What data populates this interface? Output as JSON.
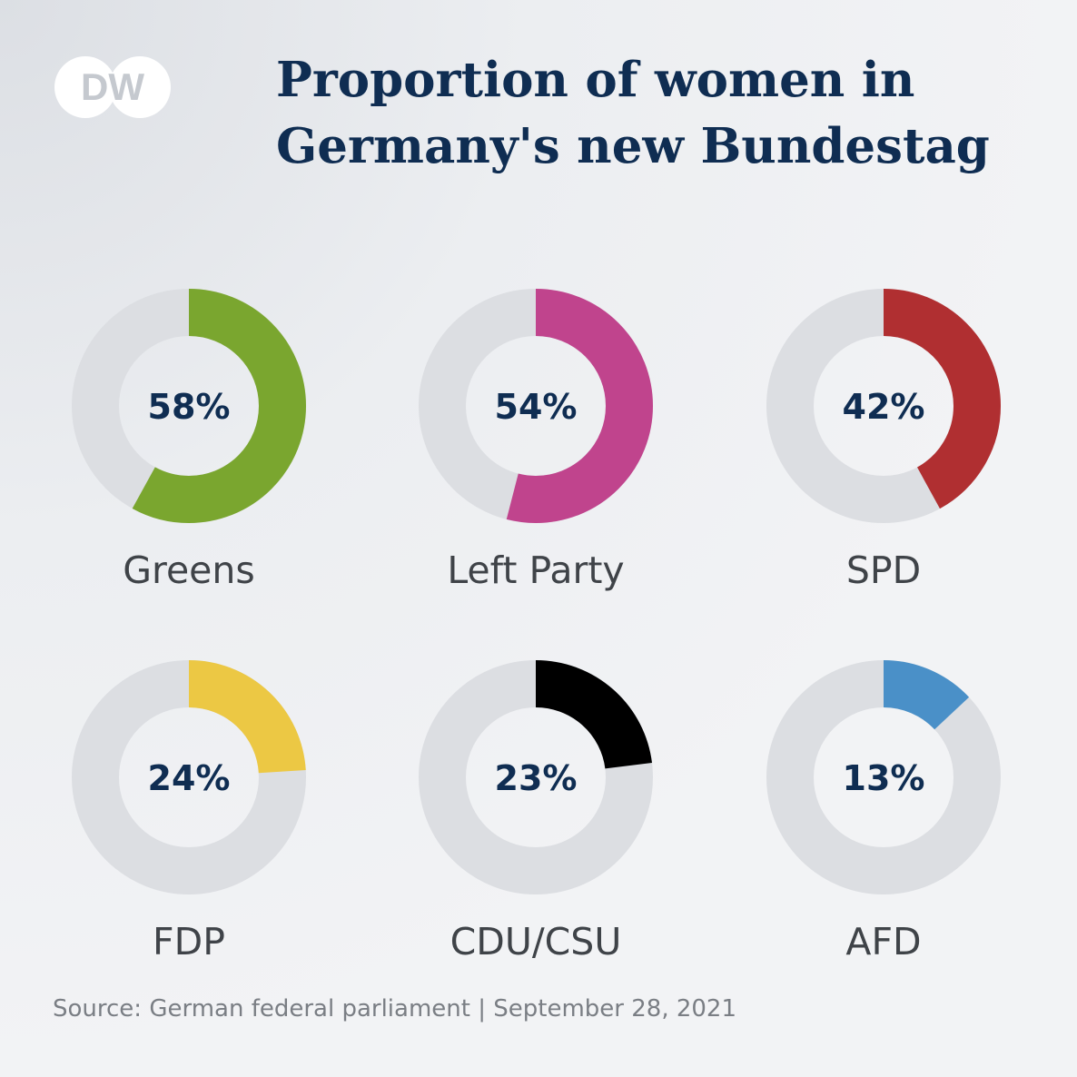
{
  "brand": {
    "logo_text": "DW"
  },
  "title": "Proportion of women in Germany's new Bundestag",
  "source": "Source: German federal parliament | September 28, 2021",
  "colors": {
    "track": "#dcdee2",
    "title": "#0f2d52",
    "label": "#3f4348"
  },
  "chart_data": {
    "type": "pie",
    "title": "Proportion of women in Germany's new Bundestag",
    "categories": [
      "Greens",
      "Left Party",
      "SPD",
      "FDP",
      "CDU/CSU",
      "AFD"
    ],
    "values": [
      58,
      54,
      42,
      24,
      23,
      13
    ],
    "value_labels": [
      "58%",
      "54%",
      "42%",
      "24%",
      "23%",
      "13%"
    ],
    "colors": [
      "#7aa62f",
      "#c0448d",
      "#b02f31",
      "#ecc844",
      "#000000",
      "#4a90c8"
    ],
    "unit": "%"
  }
}
